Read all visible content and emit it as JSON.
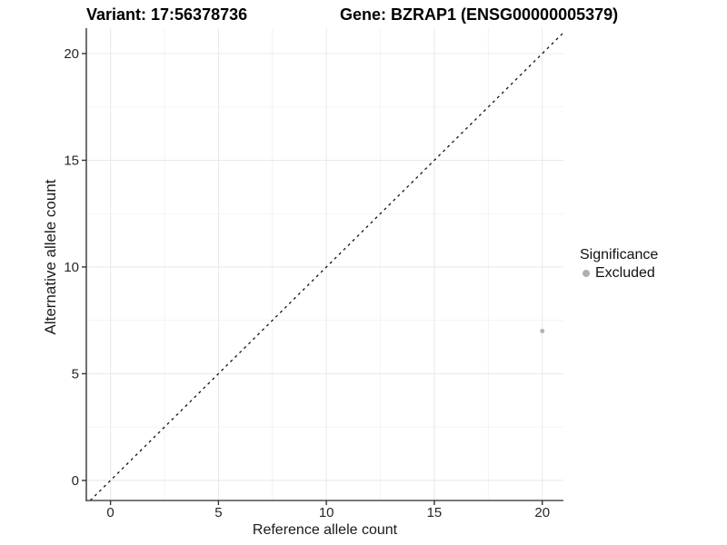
{
  "chart_data": {
    "type": "scatter",
    "title_left": "Variant: 17:56378736",
    "title_right": "Gene: BZRAP1 (ENSG00000005379)",
    "xlabel": "Reference allele count",
    "ylabel": "Alternative allele count",
    "x_ticks": [
      0,
      5,
      10,
      15,
      20
    ],
    "y_ticks": [
      0,
      5,
      10,
      15,
      20
    ],
    "x_minor_gridlines": [
      2.5,
      7.5,
      12.5,
      17.5
    ],
    "y_minor_gridlines": [
      2.5,
      7.5,
      12.5,
      17.5
    ],
    "xlim": [
      -1.12,
      20.98
    ],
    "ylim": [
      -0.94,
      21.19
    ],
    "grid": "major+minor",
    "reference_line": {
      "kind": "identity y=x",
      "style": "dashed",
      "color": "#111111"
    },
    "series": [
      {
        "name": "Excluded",
        "color": "#b0b0b0",
        "points": [
          {
            "x": 20,
            "y": 7
          }
        ]
      }
    ],
    "legend": {
      "title": "Significance",
      "position": "right",
      "items": [
        {
          "label": "Excluded",
          "color": "#b0b0b0"
        }
      ]
    },
    "colors": {
      "background": "#ffffff",
      "axis_line": "#4d4d4d",
      "tick_mark": "#333333",
      "tick_label": "#262626",
      "grid_major": "#e8e8e8",
      "grid_minor": "#f3f3f3",
      "title": "#000000"
    }
  }
}
